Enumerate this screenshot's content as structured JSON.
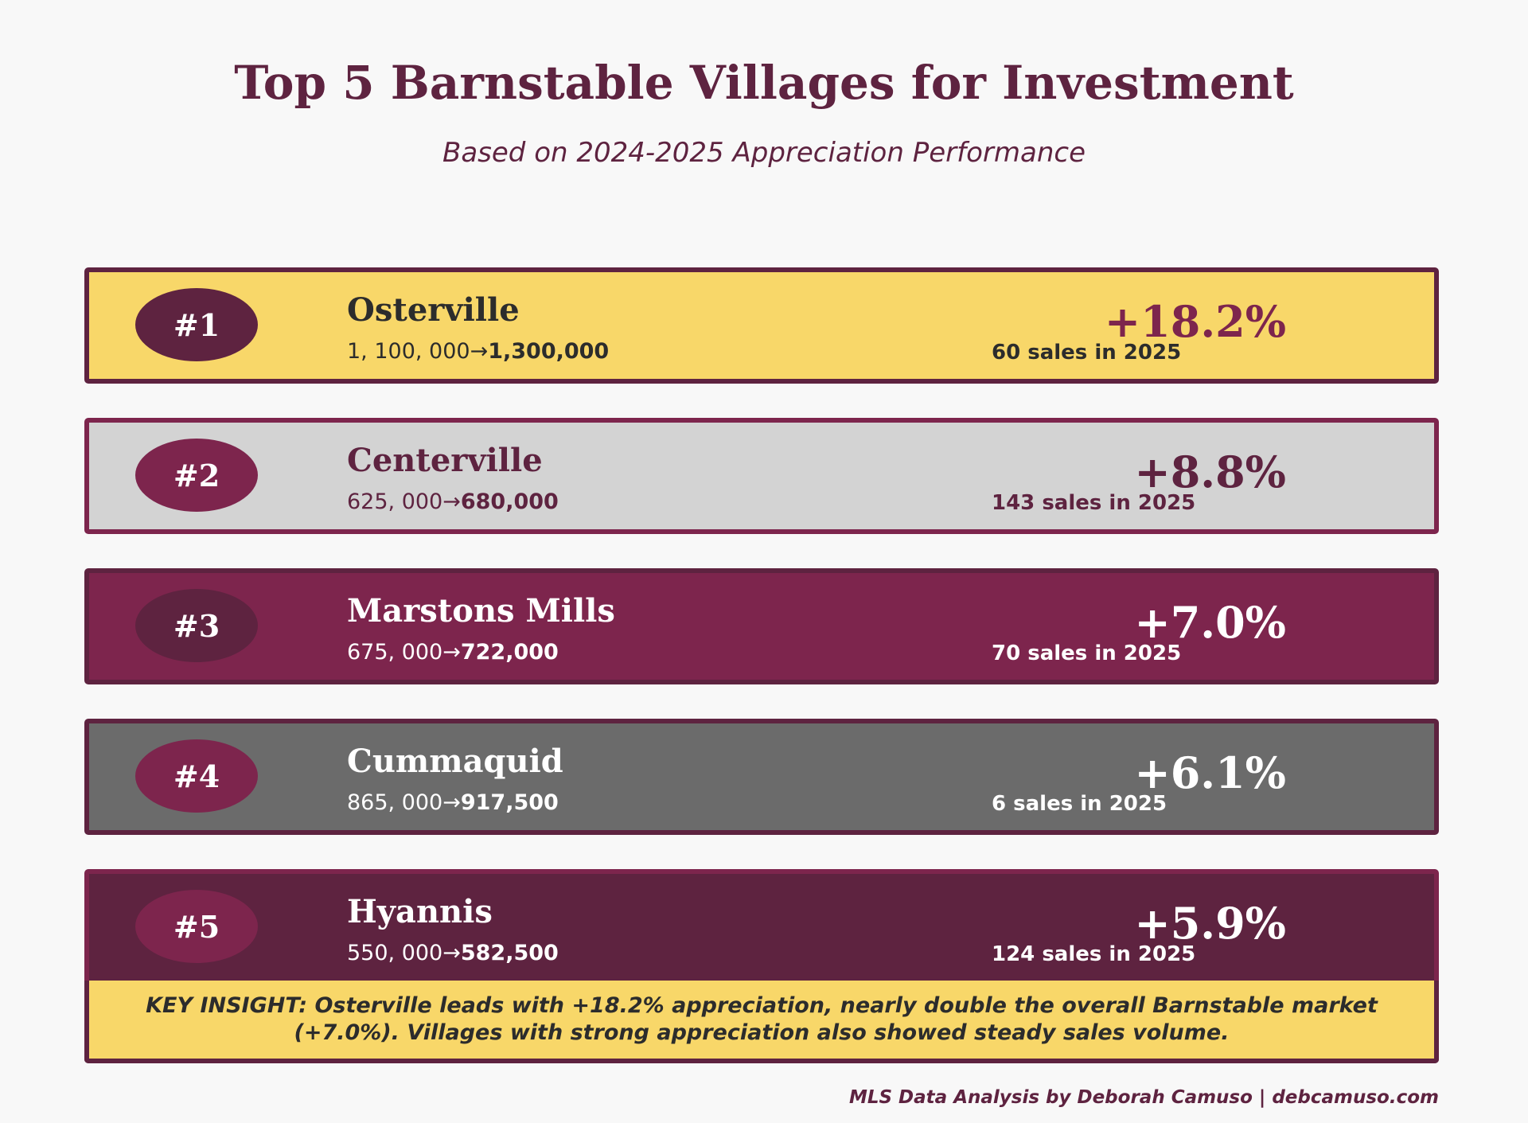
{
  "header": {
    "title": "Top 5 Barnstable Villages for Investment",
    "subtitle": "Based on 2024-2025 Appreciation Performance"
  },
  "colors": {
    "background": "#f8f8f8",
    "maroon_dark": "#5e2340",
    "maroon": "#7d254d",
    "gold": "#f8d769",
    "light_gray": "#d3d3d3",
    "dark_gray": "#6b6b6b",
    "text_dark": "#2c2c2c",
    "white": "#ffffff"
  },
  "chart_data": {
    "type": "table",
    "title": "Top 5 Barnstable Villages for Investment",
    "subtitle": "Based on 2024-2025 Appreciation Performance",
    "rows": [
      {
        "rank": "#1",
        "village": "Osterville",
        "price_from": "1, 100, 000→",
        "price_to": "1,300,000",
        "appreciation_pct": 18.2,
        "appreciation_label": "+18.2%",
        "sales_2025": 60,
        "sales_label": "60 sales in 2025",
        "card_bg": "#f8d769",
        "card_border": "#5e2340",
        "badge_bg": "#5e2340",
        "name_color": "#2c2c2c",
        "price_color": "#2c2c2c",
        "pct_color": "#7d254d",
        "sales_color": "#2c2c2c"
      },
      {
        "rank": "#2",
        "village": "Centerville",
        "price_from": "625, 000→",
        "price_to": "680,000",
        "appreciation_pct": 8.8,
        "appreciation_label": "+8.8%",
        "sales_2025": 143,
        "sales_label": "143 sales in 2025",
        "card_bg": "#d3d3d3",
        "card_border": "#7d254d",
        "badge_bg": "#7d254d",
        "name_color": "#5e2340",
        "price_color": "#5e2340",
        "pct_color": "#5e2340",
        "sales_color": "#5e2340"
      },
      {
        "rank": "#3",
        "village": "Marstons Mills",
        "price_from": "675, 000→",
        "price_to": "722,000",
        "appreciation_pct": 7.0,
        "appreciation_label": "+7.0%",
        "sales_2025": 70,
        "sales_label": "70 sales in 2025",
        "card_bg": "#7d254d",
        "card_border": "#5e2340",
        "badge_bg": "#5e2340",
        "name_color": "#ffffff",
        "price_color": "#ffffff",
        "pct_color": "#ffffff",
        "sales_color": "#ffffff"
      },
      {
        "rank": "#4",
        "village": "Cummaquid",
        "price_from": "865, 000→",
        "price_to": "917,500",
        "appreciation_pct": 6.1,
        "appreciation_label": "+6.1%",
        "sales_2025": 6,
        "sales_label": "6 sales in 2025",
        "card_bg": "#6b6b6b",
        "card_border": "#5e2340",
        "badge_bg": "#7d254d",
        "name_color": "#ffffff",
        "price_color": "#ffffff",
        "pct_color": "#ffffff",
        "sales_color": "#ffffff"
      },
      {
        "rank": "#5",
        "village": "Hyannis",
        "price_from": "550, 000→",
        "price_to": "582,500",
        "appreciation_pct": 5.9,
        "appreciation_label": "+5.9%",
        "sales_2025": 124,
        "sales_label": "124 sales in 2025",
        "card_bg": "#5e2340",
        "card_border": "#7d254d",
        "badge_bg": "#7d254d",
        "name_color": "#ffffff",
        "price_color": "#ffffff",
        "pct_color": "#ffffff",
        "sales_color": "#ffffff"
      }
    ]
  },
  "insight": {
    "text": "KEY INSIGHT: Osterville leads with +18.2% appreciation, nearly double the overall Barnstable market (+7.0%). Villages with strong appreciation also showed steady sales volume."
  },
  "footer": {
    "text": "MLS Data Analysis by Deborah Camuso | debcamuso.com"
  }
}
